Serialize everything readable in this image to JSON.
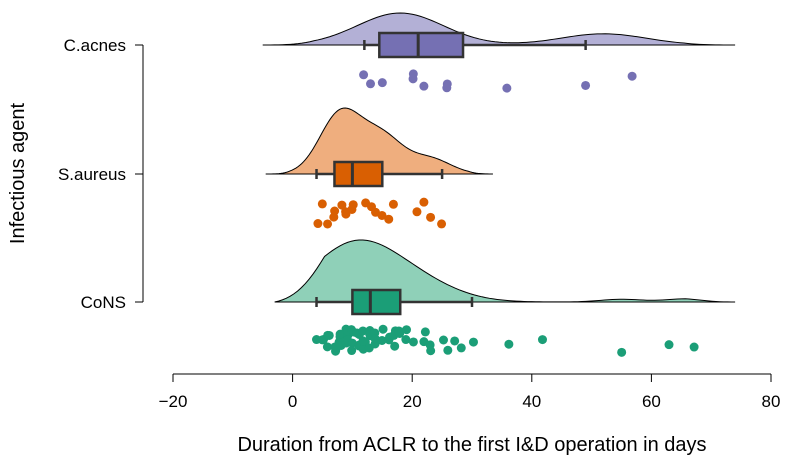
{
  "chart_data": {
    "type": "raincloud",
    "xlabel": "Duration from ACLR to the first I&D operation in days",
    "ylabel": "Infectious agent",
    "xlim": [
      -20,
      80
    ],
    "xticks": [
      "−20",
      "0",
      "20",
      "40",
      "60",
      "80"
    ],
    "xtick_values": [
      -20,
      0,
      20,
      40,
      60,
      80
    ],
    "grid": false,
    "categories": [
      "C.acnes",
      "S.aureus",
      "CoNS"
    ],
    "series": [
      {
        "name": "C.acnes",
        "color": "#7570B3",
        "fill_color": "#B3B0D6",
        "box": {
          "whisker_low": 12,
          "q1": 14.5,
          "median": 21,
          "q3": 28.5,
          "whisker_high": 49
        },
        "density_range": [
          -5,
          74
        ],
        "density_peaks": [
          [
            18,
            1.0
          ],
          [
            52,
            0.35
          ]
        ],
        "points": [
          13,
          12,
          15,
          20,
          22,
          20,
          26,
          26,
          36,
          49,
          57
        ]
      },
      {
        "name": "S.aureus",
        "color": "#D95F02",
        "fill_color": "#EFAE7E",
        "box": {
          "whisker_low": 4,
          "q1": 7,
          "median": 10,
          "q3": 15,
          "whisker_high": 25
        },
        "density_range": [
          -4.5,
          33.5
        ],
        "density_peaks": [
          [
            8,
            1.0
          ],
          [
            15,
            0.6
          ],
          [
            23,
            0.25
          ]
        ],
        "points": [
          4,
          5,
          6,
          7,
          7,
          8,
          9,
          9,
          10,
          10,
          12,
          13,
          14,
          15,
          16,
          17,
          21,
          22,
          23,
          25
        ]
      },
      {
        "name": "CoNS",
        "color": "#1B9E77",
        "fill_color": "#8FD0B8",
        "box": {
          "whisker_low": 4,
          "q1": 10,
          "median": 13,
          "q3": 18,
          "whisker_high": 30
        },
        "density_range": [
          -3,
          74
        ],
        "density_peaks": [
          [
            10,
            1.0
          ],
          [
            20,
            0.35
          ],
          [
            55,
            0.05
          ],
          [
            66,
            0.06
          ]
        ],
        "points": [
          4,
          5,
          5,
          6,
          6,
          6,
          7,
          7,
          7,
          8,
          8,
          8,
          8,
          9,
          9,
          9,
          9,
          9,
          10,
          10,
          10,
          10,
          11,
          11,
          11,
          11,
          12,
          12,
          12,
          12,
          13,
          13,
          13,
          13,
          14,
          14,
          14,
          15,
          15,
          16,
          16,
          17,
          17,
          17,
          18,
          18,
          19,
          19,
          20,
          22,
          22,
          23,
          23,
          25,
          26,
          27,
          28,
          30,
          36,
          42,
          55,
          63,
          67
        ]
      }
    ]
  }
}
